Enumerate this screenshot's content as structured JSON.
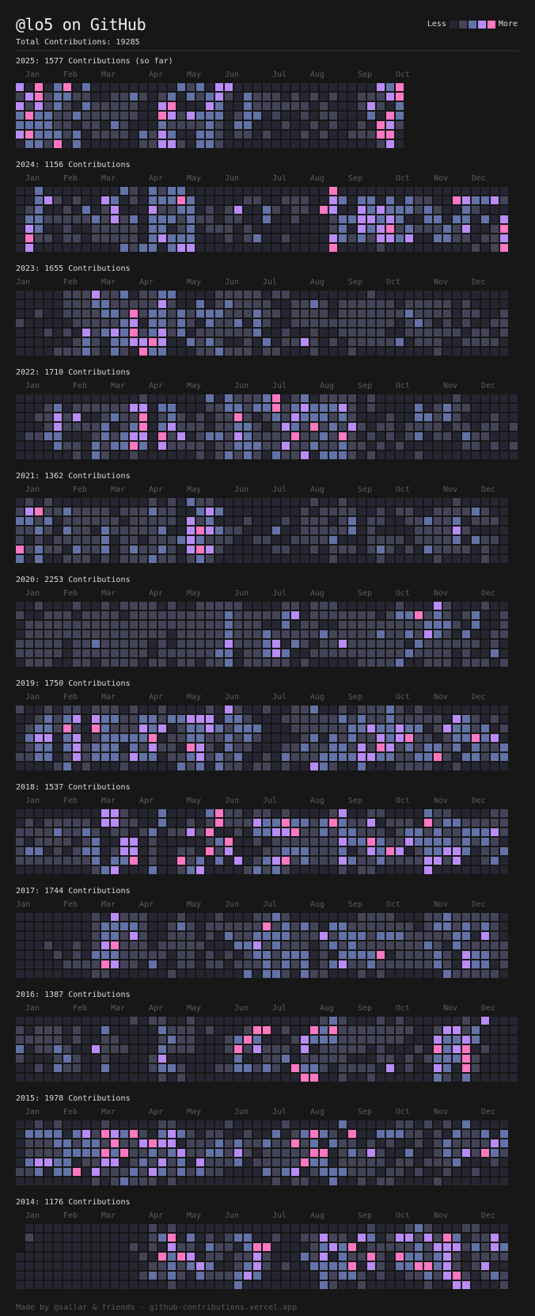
{
  "header": {
    "title": "@lo5 on GitHub",
    "total": "Total Contributions: 19285",
    "legend_less": "Less",
    "legend_more": "More"
  },
  "colors": {
    "background": "#171717",
    "levels": [
      "#262633",
      "#444459",
      "#6373a8",
      "#b98cf7",
      "#ff78c2"
    ]
  },
  "years": [
    {
      "title": "2025: 1577 Contributions (so far)",
      "months": [
        "Jan",
        "Feb",
        "Mar",
        "Apr",
        "May",
        "Jun",
        "Jul",
        "Aug",
        "Sep",
        "Oct"
      ],
      "rows": [
        "30402402000000000212033000000000000000324",
        "13412211001121012021231021110101010011134",
        "31312102111110034000320021111110100013102",
        "24221121111110043132220122010010110002042",
        "22221101102100021111210220001001010010431",
        "34222120111102132002210110100010100111440",
        "02214020000001133102210000000000000000130"
      ]
    },
    {
      "title": "2024: 1156 Contributions",
      "months": [
        "Jan",
        "Feb",
        "Mar",
        "Apr",
        "May",
        "Jun",
        "Jul",
        "Aug",
        "Sep",
        "Oct",
        "Nov",
        "Dec"
      ],
      "rows": [
        "0020000000021021220000000000000004000000000000000000",
        "0023101003201022242000001100111003202202021100432231",
        "0120010201300031122010130021011043003232221210021000",
        "0221111121312022212110110020010001223323200220220203",
        "0320010011111022012011101000000001203234121112130014",
        "0411011011111023222000101200100003212133230022110113",
        "0300000000021220233000000000000004000010000000001014"
      ]
    },
    {
      "title": "2023: 1655 Contributions",
      "months": [
        "Jan",
        "Feb",
        "Mar",
        "Apr",
        "May",
        "Jun",
        "Jul",
        "Aug",
        "Sep",
        "Oct",
        "Nov",
        "Dec"
      ],
      "rows": [
        "0000011131120112200001111101100000000100000000000000",
        "0000011122111113100201211110011210111111011111010000",
        "0010011112214122121222111211011110111111121111011001",
        "1000001111123022121021120210011111111111012101010011",
        "0001010312324123120111111200100100111110011111101101",
        "0000001210223343002121001020113101011111201110011110",
        "0000111210210422000112111011000100010000000010000000"
      ]
    },
    {
      "title": "2022: 1710 Contributions",
      "months": [
        "Jan",
        "Feb",
        "Mar",
        "Apr",
        "May",
        "Jun",
        "Jul",
        "Aug",
        "Sep",
        "Oct",
        "Nov",
        "Dec"
      ],
      "rows": [
        "00000000000001000000202111240120111101000000001000000",
        "00012011111133022000112212241232223101000020121100000",
        "00113130012114012101011410121322212100010022121000100",
        "00013111120124023111011221013214121310110111101101101",
        "01122000121233041301221321111411214101010120110211000",
        "00002110212242031111011222113112112110101000000110101",
        "00000010210010000001012121021130222101000010000000000"
      ]
    },
    {
      "title": "2021: 1362 Contributions",
      "months": [
        "Jan",
        "Feb",
        "Mar",
        "Apr",
        "May",
        "Jun",
        "Jul",
        "Aug",
        "Sep",
        "Oct",
        "Nov",
        "Dec"
      ],
      "rows": [
        "0101000000000010102110000000000100100000000000100000",
        "1341121111011121100232000000001011110010110011112100",
        "2212011111101111103120001000101110120110011211201110",
        "1121021102111112003432110002001111120100001111310000",
        "1010111112011011123211100110011112000111101111202110",
        "4121102112012112103431000001100101110121010211110100",
        "2020011101011121101210000000000001000010000010000100"
      ]
    },
    {
      "title": "2020: 2253 Contributions",
      "months": [
        "Jan",
        "Feb",
        "Mar",
        "Apr",
        "May",
        "Jun",
        "Jul",
        "Aug",
        "Sep",
        "Oct",
        "Nov",
        "Dec"
      ],
      "rows": [
        "0010001001011110100111110000110111000000100031000100",
        "1001110111101111111111211111230111111101224121012001",
        "0111111111111111111111211100201100111111111222102001",
        "0111111111111111011111211121111121111121121321020011",
        "1111101121111101011111311123021011311111102111111010",
        "1111101111111101111112201123200111111111121111010020",
        "0111001101111011011011201111101000001111200111011101"
      ]
    },
    {
      "title": "2019: 1750 Contributions",
      "months": [
        "Jan",
        "Feb",
        "Mar",
        "Apr",
        "May",
        "Jun",
        "Jul",
        "Aug",
        "Sep",
        "Oct",
        "Nov",
        "Dec"
      ],
      "rows": [
        "1001011011101001000010310010011200101112101000000000",
        "0012123032211221223330221000111111212112111110321010",
        "0122141042111323012232122200011111122322322013221201",
        "0233023012222240112211212100001202121132341101224230",
        "0122023122202131104310211000112112213143121221202112",
        "1122013122213220112312120010211122223322112241022122",
        "0000120100010000021202110110100321002000111100100000"
      ]
    },
    {
      "title": "2018: 1537 Contributions",
      "months": [
        "Jan",
        "Feb",
        "Mar",
        "Apr",
        "May",
        "Jun",
        "Jul",
        "Aug",
        "Sep",
        "Oct",
        "Nov",
        "Dec"
      ],
      "rows": [
        "0000000003310002000024110110100001300110000211000011",
        "0101111103311002001014111322422124211301110412211111",
        "1111211210110120113140010223341121221110122121122231",
        "1011110120033010000012400101111111322421132222121210",
        "1220101220133010011041300011222111201324301223320112",
        "1111111120224010041202030123412111321121111331300120",
        "0000000012300020012300001212100000101100000300000000"
      ]
    },
    {
      "title": "2017: 1744 Contributions",
      "months": [
        "Jan",
        "Feb",
        "Mar",
        "Apr",
        "May",
        "Jun",
        "Jul",
        "Aug",
        "Sep",
        "Oct",
        "Nov",
        "Dec"
      ],
      "rows": [
        "0000000010311100010001000112100000001111000112111110",
        "0000000012222100121011111141212102211111110122121210",
        "0000000012213100111010211222211131222122211111220310",
        "0001001013411101111100022312111012121111111210211111",
        "0000101022211111011010101221222010222240111121032211",
        "0000011114311020011011011121212012311211111121032201",
        "0000000011000000100000002022102110001010000002111110"
      ]
    },
    {
      "title": "2016: 1387 Contributions",
      "months": [
        "Jan",
        "Feb",
        "Mar",
        "Apr",
        "May",
        "Jun",
        "Jul",
        "Aug",
        "Sep",
        "Oct",
        "Nov",
        "Dec"
      ],
      "rows": [
        "00000000000010110010000000000000121000101000000103000",
        "10111010020000021110100014401004241111111100133120000",
        "11111010011000012110001242000132221111111000322320000",
        "20112100311100021110001413111030111110100010423401000",
        "10001210010000130000000200112011111000110101222410000",
        "00102110020000122100011221210422101111030100320410000",
        "00000000000000010100000000000044001001000000210200000"
      ]
    },
    {
      "title": "2015: 1978 Contributions",
      "months": [
        "Jan",
        "Feb",
        "Mar",
        "Apr",
        "May",
        "Jun",
        "Jul",
        "Aug",
        "Sep",
        "Oct",
        "Nov",
        "Dec"
      ],
      "rows": [
        "0010100001000001100000100000100000200000110101020000",
        "0222202314324102321011001002012421040022211010211202",
        "0111221221411343301112121121141202110101001012111132",
        "0111122224241121231122131011111440121310020012131421",
        "0233220113301213120311120111114220111110110111200010",
        "1120224031112132121211000021230122211101101001001000",
        "0000000010121110100000000001011002001011000010000000"
      ]
    },
    {
      "title": "2014: 1176 Contributions",
      "months": [
        "Jan",
        "Feb",
        "Mar",
        "Apr",
        "May",
        "Jun",
        "Jul",
        "Aug",
        "Sep",
        "Oct",
        "Nov",
        "Dec"
      ],
      "rows": [
        ".000000000000010100000000000000000000100012100011000",
        ".100000000000012402010122001001131103201331314201130",
        ".000000000001010311021102440000123240111112133312132",
        "0000000000000104243011011310002130211410422123101111",
        "0000000000000011212320012310100222240310224423101300",
        "0000000000000121210211123200000021221010011213410121",
        "0000000000000000100000020000000021001000000100330001"
      ]
    }
  ],
  "footer": "Made by @sallar & friends - github-contributions.vercel.app"
}
